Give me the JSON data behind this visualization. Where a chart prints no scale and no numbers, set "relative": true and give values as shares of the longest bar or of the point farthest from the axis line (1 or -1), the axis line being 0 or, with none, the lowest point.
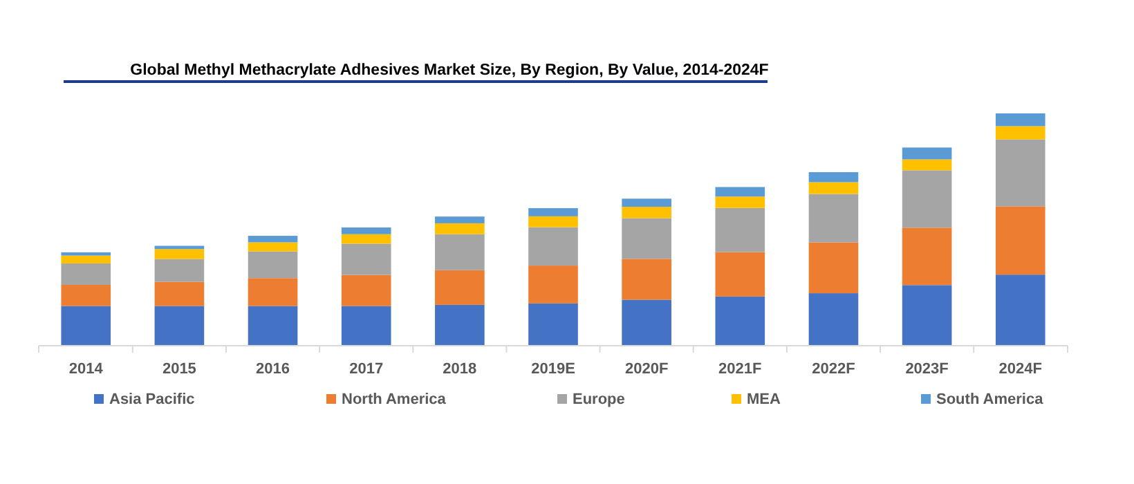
{
  "chart_data": {
    "type": "bar",
    "title": "Global Methyl Methacrylate Adhesives Market Size, By Region, By Value, 2014-2024F",
    "categories": [
      "2014",
      "2015",
      "2016",
      "2017",
      "2018",
      "2019E",
      "2020F",
      "2021F",
      "2022F",
      "2023F",
      "2024F"
    ],
    "stacked": true,
    "relative": true,
    "legend": "bottom",
    "grid": false,
    "series": [
      {
        "name": "Asia Pacific",
        "color": "#4472c4",
        "values": [
          0.171,
          0.171,
          0.171,
          0.171,
          0.176,
          0.182,
          0.198,
          0.212,
          0.226,
          0.261,
          0.306
        ]
      },
      {
        "name": "North America",
        "color": "#ed7d31",
        "values": [
          0.091,
          0.104,
          0.12,
          0.134,
          0.149,
          0.163,
          0.176,
          0.191,
          0.219,
          0.247,
          0.294
        ]
      },
      {
        "name": "Europe",
        "color": "#a5a5a5",
        "values": [
          0.092,
          0.098,
          0.115,
          0.134,
          0.155,
          0.165,
          0.175,
          0.19,
          0.208,
          0.247,
          0.288
        ]
      },
      {
        "name": "MEA",
        "color": "#ffc000",
        "values": [
          0.034,
          0.043,
          0.039,
          0.041,
          0.047,
          0.047,
          0.049,
          0.049,
          0.051,
          0.047,
          0.057
        ]
      },
      {
        "name": "South America",
        "color": "#5b9bd5",
        "values": [
          0.014,
          0.014,
          0.028,
          0.029,
          0.029,
          0.035,
          0.035,
          0.041,
          0.043,
          0.051,
          0.055
        ]
      }
    ]
  }
}
